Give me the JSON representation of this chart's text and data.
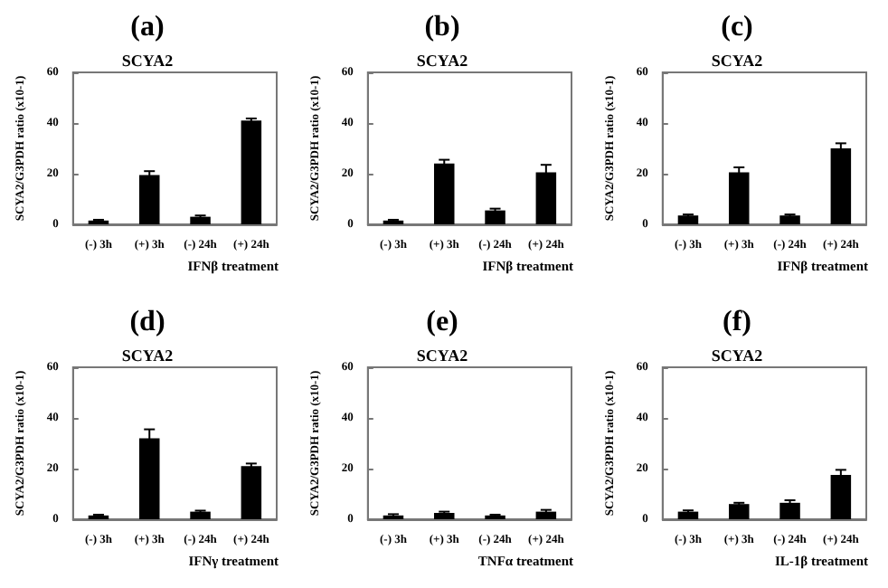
{
  "chart_data": [
    {
      "type": "bar",
      "title": "(a)",
      "subtitle": "SCYA2",
      "ylabel": "SCYA2/G3PDH ratio (x10-1)",
      "xlabel": "IFNβ treatment",
      "categories": [
        "(-) 3h",
        "(+) 3h",
        "(-) 24h",
        "(+) 24h"
      ],
      "values": [
        1.5,
        19.5,
        3,
        41
      ],
      "errors": [
        0.3,
        1.5,
        0.5,
        0.8
      ],
      "color": "#000000",
      "ylim": [
        0,
        60
      ],
      "yticks": [
        0,
        20,
        40,
        60
      ],
      "grid": false
    },
    {
      "type": "bar",
      "title": "(b)",
      "subtitle": "SCYA2",
      "ylabel": "SCYA2/G3PDH ratio (x10-1)",
      "xlabel": "IFNβ treatment",
      "categories": [
        "(-) 3h",
        "(+) 3h",
        "(-) 24h",
        "(+) 24h"
      ],
      "values": [
        1.5,
        24,
        5.5,
        20.5
      ],
      "errors": [
        0.3,
        1.5,
        0.7,
        3
      ],
      "color": "#000000",
      "ylim": [
        0,
        60
      ],
      "yticks": [
        0,
        20,
        40,
        60
      ],
      "grid": false
    },
    {
      "type": "bar",
      "title": "(c)",
      "subtitle": "SCYA2",
      "ylabel": "SCYA2/G3PDH ratio (x10-1)",
      "xlabel": "IFNβ treatment",
      "categories": [
        "(-) 3h",
        "(+) 3h",
        "(-) 24h",
        "(+) 24h"
      ],
      "values": [
        3.5,
        20.5,
        3.5,
        30
      ],
      "errors": [
        0.4,
        2,
        0.4,
        2
      ],
      "color": "#000000",
      "ylim": [
        0,
        60
      ],
      "yticks": [
        0,
        20,
        40,
        60
      ],
      "grid": false
    },
    {
      "type": "bar",
      "title": "(d)",
      "subtitle": "SCYA2",
      "ylabel": "SCYA2/G3PDH ratio (x10-1)",
      "xlabel": "IFNγ treatment",
      "categories": [
        "(-) 3h",
        "(+) 3h",
        "(-) 24h",
        "(+) 24h"
      ],
      "values": [
        1.5,
        32,
        3,
        21
      ],
      "errors": [
        0.3,
        3.5,
        0.4,
        1
      ],
      "color": "#000000",
      "ylim": [
        0,
        60
      ],
      "yticks": [
        0,
        20,
        40,
        60
      ],
      "grid": false
    },
    {
      "type": "bar",
      "title": "(e)",
      "subtitle": "SCYA2",
      "ylabel": "SCYA2/G3PDH ratio (x10-1)",
      "xlabel": "TNFα treatment",
      "categories": [
        "(-) 3h",
        "(+) 3h",
        "(-) 24h",
        "(+) 24h"
      ],
      "values": [
        1.5,
        2.5,
        1.5,
        3
      ],
      "errors": [
        0.5,
        0.5,
        0.3,
        0.7
      ],
      "color": "#000000",
      "ylim": [
        0,
        60
      ],
      "yticks": [
        0,
        20,
        40,
        60
      ],
      "grid": false
    },
    {
      "type": "bar",
      "title": "(f)",
      "subtitle": "SCYA2",
      "ylabel": "SCYA2/G3PDH ratio (x10-1)",
      "xlabel": "IL-1β treatment",
      "categories": [
        "(-) 3h",
        "(+) 3h",
        "(-) 24h",
        "(+) 24h"
      ],
      "values": [
        3,
        6,
        6.5,
        17.5
      ],
      "errors": [
        0.5,
        0.5,
        1,
        2
      ],
      "color": "#000000",
      "ylim": [
        0,
        60
      ],
      "yticks": [
        0,
        20,
        40,
        60
      ],
      "grid": false
    }
  ]
}
